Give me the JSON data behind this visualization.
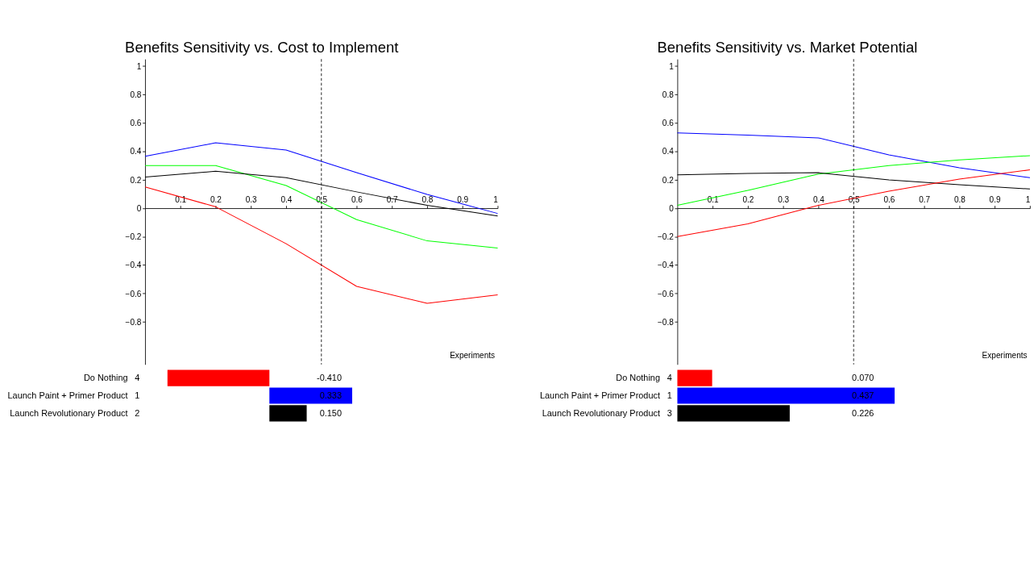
{
  "chart_data": [
    {
      "type": "line",
      "title": "Benefits Sensitivity vs. Cost to Implement",
      "xlabel": "Experiments",
      "xlim": [
        0,
        1
      ],
      "ylim": [
        -1.1,
        1.05
      ],
      "xticks": [
        0.1,
        0.2,
        0.3,
        0.4,
        0.5,
        0.6,
        0.7,
        0.8,
        0.9,
        1
      ],
      "yticks": [
        -0.8,
        -0.6,
        -0.4,
        -0.2,
        0,
        0.2,
        0.4,
        0.6,
        0.8,
        1
      ],
      "grid": false,
      "legend": false,
      "line_style": "solid",
      "x": [
        0,
        0.2,
        0.4,
        0.6,
        0.8,
        1
      ],
      "series": [
        {
          "color": "#0000ff",
          "values": [
            0.365,
            0.46,
            0.41,
            0.25,
            0.097,
            -0.037
          ]
        },
        {
          "color": "#00ff00",
          "values": [
            0.3,
            0.3,
            0.16,
            -0.08,
            -0.23,
            -0.28
          ]
        },
        {
          "color": "#000000",
          "values": [
            0.22,
            0.26,
            0.215,
            0.115,
            0.02,
            -0.055
          ]
        },
        {
          "color": "#ff0000",
          "values": [
            0.15,
            0.01,
            -0.25,
            -0.55,
            -0.67,
            -0.61
          ]
        }
      ],
      "ref_lines": [
        {
          "axis": "x",
          "value": 0.5,
          "color": "#000000",
          "line_style": "dashed"
        }
      ]
    },
    {
      "type": "bar",
      "orientation": "horizontal",
      "categories": [
        "Do Nothing",
        "Launch Paint + Primer Product",
        "Launch Revolutionary Product"
      ],
      "values": [
        -0.41,
        0.333,
        0.15
      ],
      "colors": [
        "#ff0000",
        "#0000ff",
        "#000000"
      ],
      "value_labels": [
        "-0.410",
        "0.333",
        "0.150"
      ],
      "annotations": [
        "4",
        "1",
        "2"
      ]
    },
    {
      "type": "line",
      "title": "Benefits Sensitivity vs. Market Potential",
      "xlabel": "Experiments",
      "xlim": [
        0,
        1
      ],
      "ylim": [
        -1.1,
        1.05
      ],
      "xticks": [
        0.1,
        0.2,
        0.3,
        0.4,
        0.5,
        0.6,
        0.7,
        0.8,
        0.9,
        1
      ],
      "yticks": [
        -0.8,
        -0.6,
        -0.4,
        -0.2,
        0,
        0.2,
        0.4,
        0.6,
        0.8,
        1
      ],
      "grid": false,
      "legend": false,
      "line_style": "solid",
      "x": [
        0,
        0.2,
        0.4,
        0.6,
        0.8,
        1
      ],
      "series": [
        {
          "color": "#0000ff",
          "values": [
            0.53,
            0.515,
            0.495,
            0.375,
            0.285,
            0.215
          ]
        },
        {
          "color": "#00ff00",
          "values": [
            0.02,
            0.125,
            0.24,
            0.3,
            0.34,
            0.37
          ]
        },
        {
          "color": "#000000",
          "values": [
            0.235,
            0.245,
            0.25,
            0.2,
            0.165,
            0.135
          ]
        },
        {
          "color": "#ff0000",
          "values": [
            -0.2,
            -0.11,
            0.02,
            0.12,
            0.205,
            0.27
          ]
        }
      ],
      "ref_lines": [
        {
          "axis": "x",
          "value": 0.5,
          "color": "#000000",
          "line_style": "dashed"
        }
      ]
    },
    {
      "type": "bar",
      "orientation": "horizontal",
      "categories": [
        "Do Nothing",
        "Launch Paint + Primer Product",
        "Launch Revolutionary Product"
      ],
      "values": [
        0.07,
        0.437,
        0.226
      ],
      "colors": [
        "#ff0000",
        "#0000ff",
        "#000000"
      ],
      "value_labels": [
        "0.070",
        "0.437",
        "0.226"
      ],
      "annotations": [
        "4",
        "1",
        "3"
      ]
    }
  ]
}
